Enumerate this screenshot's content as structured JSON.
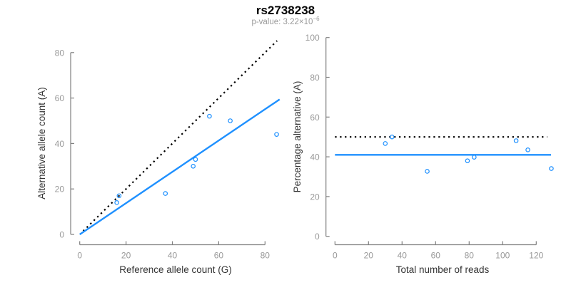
{
  "header": {
    "title": "rs2738238",
    "p_value_text": "p-value: 3.22×10",
    "p_value_exponent": "−6"
  },
  "colors": {
    "accent_blue": "#1E90FF",
    "dotted_line_black": "#000000",
    "axis_gray": "#808080",
    "tick_label_gray": "#999999",
    "axis_title_dark": "#333333"
  },
  "chart_data": [
    {
      "type": "scatter",
      "panel": "left",
      "xlabel": "Reference allele count (G)",
      "ylabel": "Alternative allele count (A)",
      "x": [
        16,
        17,
        37,
        49,
        50,
        56,
        65,
        85
      ],
      "y": [
        14,
        17,
        18,
        30,
        33,
        52,
        50,
        44
      ],
      "xticks": [
        0,
        20,
        40,
        60,
        80
      ],
      "yticks": [
        0,
        20,
        40,
        60,
        80
      ],
      "xlim": [
        0,
        86
      ],
      "ylim": [
        0,
        86
      ],
      "grid": false,
      "legend": false,
      "marker": "open-circle",
      "point_color": "#1E90FF",
      "lines": [
        {
          "name": "identity-line",
          "meaning": "y = x (50% expectation)",
          "style": "dotted",
          "color": "#000000",
          "points": [
            [
              1.5,
              1.5
            ],
            [
              85.2,
              85.2
            ]
          ]
        },
        {
          "name": "fit-line",
          "meaning": "fitted allelic ratio",
          "style": "solid",
          "color": "#1E90FF",
          "points": [
            [
              0,
              0
            ],
            [
              86.3,
              59.4
            ]
          ]
        }
      ]
    },
    {
      "type": "scatter",
      "panel": "right",
      "xlabel": "Total number of reads",
      "ylabel": "Percentage alternative (A)",
      "x": [
        30,
        34,
        55,
        79,
        83,
        108,
        115,
        129
      ],
      "y": [
        46.7,
        50.0,
        32.7,
        38.0,
        39.8,
        48.1,
        43.5,
        34.1
      ],
      "xticks": [
        0,
        20,
        40,
        60,
        80,
        100,
        120
      ],
      "yticks": [
        0,
        20,
        40,
        60,
        80,
        100
      ],
      "xlim": [
        0,
        134
      ],
      "ylim": [
        0,
        100
      ],
      "grid": false,
      "legend": false,
      "marker": "open-circle",
      "point_color": "#1E90FF",
      "lines": [
        {
          "name": "fifty-percent-line",
          "meaning": "50% reference expectation",
          "style": "dotted",
          "color": "#000000",
          "points": [
            [
              0,
              50
            ],
            [
              126.5,
              50
            ]
          ]
        },
        {
          "name": "mean-percentage-line",
          "meaning": "observed mean percentage ≈ 41%",
          "style": "solid",
          "color": "#1E90FF",
          "points": [
            [
              0,
              41
            ],
            [
              128.8,
              41
            ]
          ]
        }
      ]
    }
  ]
}
